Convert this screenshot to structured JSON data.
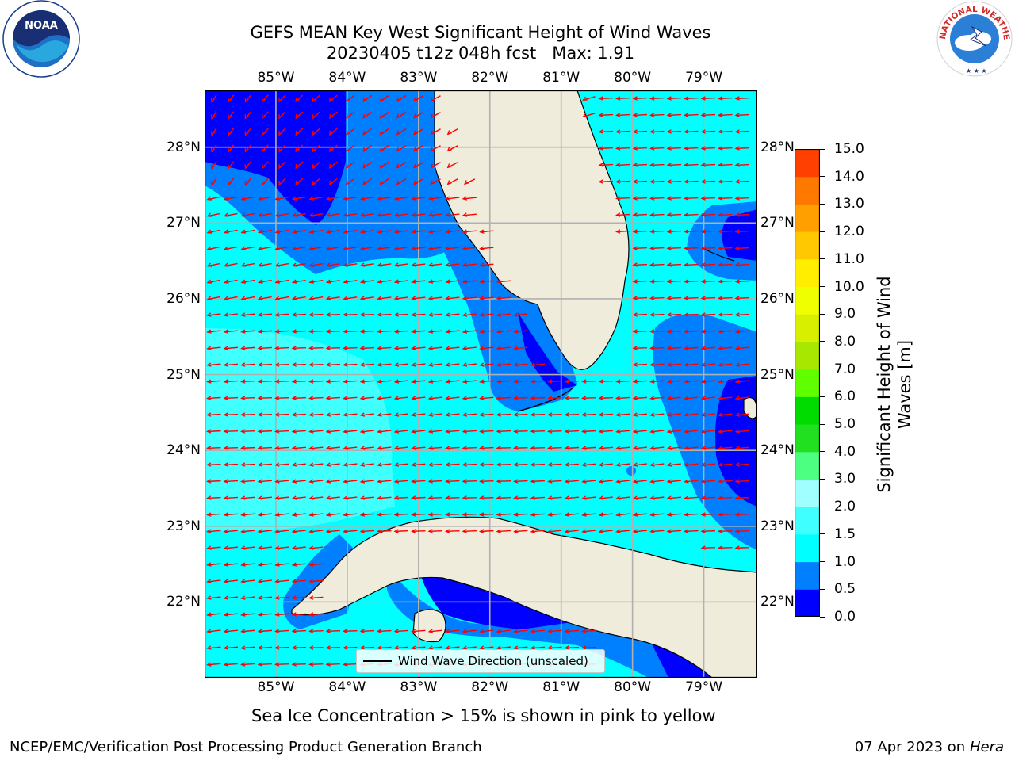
{
  "title": {
    "line1": "GEFS MEAN Key West Significant Height of Wind Waves",
    "line2": "20230405 t12z 048h fcst   Max: 1.91"
  },
  "logos": {
    "left": {
      "text": "NOAA",
      "icon": "noaa-logo"
    },
    "right": {
      "text": "NATIONAL WEATHER SERVICE",
      "icon": "nws-logo"
    }
  },
  "map": {
    "lon_labels": [
      "85°W",
      "84°W",
      "83°W",
      "82°W",
      "81°W",
      "80°W",
      "79°W"
    ],
    "lat_labels": [
      "28°N",
      "27°N",
      "26°N",
      "25°N",
      "24°N",
      "23°N",
      "22°N"
    ],
    "lon_range": [
      -86.0,
      -78.25
    ],
    "lat_range": [
      21.0,
      28.75
    ],
    "lons": [
      -85,
      -84,
      -83,
      -82,
      -81,
      -80,
      -79
    ],
    "lats": [
      28,
      27,
      26,
      25,
      24,
      23,
      22
    ],
    "ocean_color": "#00ffff",
    "land_color": "#efecdc",
    "arrow_color": "#ff0000",
    "grid_color": "#b0b0b0"
  },
  "legend": {
    "label": "Wind Wave Direction (unscaled)"
  },
  "colorbar": {
    "label": "Significant Height of Wind Waves [m]",
    "ticks": [
      "15.0",
      "14.0",
      "13.0",
      "12.0",
      "11.0",
      "10.0",
      "9.0",
      "8.0",
      "7.0",
      "6.0",
      "5.0",
      "4.0",
      "3.0",
      "2.0",
      "1.5",
      "1.0",
      "0.5",
      "0.0"
    ],
    "colors": [
      "#0000ff",
      "#0080ff",
      "#00ffff",
      "#40ffff",
      "#a0ffff",
      "#4dff80",
      "#20e020",
      "#00dc00",
      "#60ff00",
      "#a8e800",
      "#d8f000",
      "#f0ff00",
      "#ffee00",
      "#ffc800",
      "#ffa000",
      "#ff7800",
      "#ff4000",
      "#ff1400",
      "#ff0000"
    ]
  },
  "caption": "Sea Ice Concentration > 15% is shown in pink to yellow",
  "footer": {
    "left": "NCEP/EMC/Verification Post Processing Product Generation Branch",
    "right_date": "07 Apr 2023 on ",
    "right_host": "Hera"
  }
}
